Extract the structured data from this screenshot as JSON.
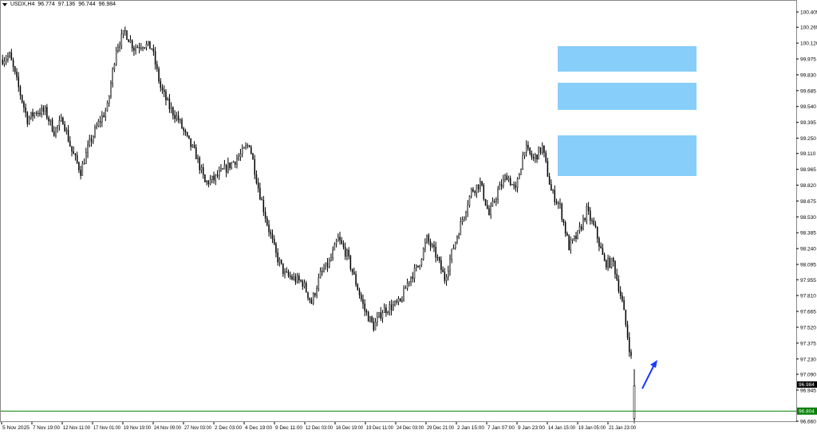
{
  "header": {
    "symbol": "USDX,H4",
    "open": "96.774",
    "high": "97.136",
    "low": "96.744",
    "close": "96.984"
  },
  "chart_data": {
    "type": "candlestick",
    "title": "USDX,H4",
    "ylim": [
      96.66,
      100.405
    ],
    "y_ticks": [
      "100.405",
      "100.265",
      "100.120",
      "99.975",
      "99.830",
      "99.685",
      "99.540",
      "99.395",
      "99.250",
      "99.110",
      "98.965",
      "98.820",
      "98.675",
      "98.530",
      "98.385",
      "98.240",
      "98.095",
      "97.955",
      "97.810",
      "97.665",
      "97.520",
      "97.375",
      "97.230",
      "97.090",
      "96.945",
      "96.660"
    ],
    "x_ticks": [
      "5 Nov 2025",
      "7 Nov 19:00",
      "12 Nov 11:00",
      "17 Nov 01:00",
      "19 Nov 19:00",
      "24 Nov 09:00",
      "27 Nov 03:00",
      "2 Dec 03:00",
      "4 Dec 19:00",
      "9 Dec 11:00",
      "12 Dec 03:00",
      "16 Dec 19:00",
      "19 Dec 11:00",
      "24 Dec 03:00",
      "29 Dec 21:00",
      "2 Jan 15:00",
      "7 Jan 07:00",
      "9 Jan 23:00",
      "14 Jan 15:00",
      "19 Jan 05:00",
      "21 Jan 23:00"
    ],
    "approx_close_path": [
      99.968,
      100.004,
      99.713,
      99.421,
      99.494,
      99.494,
      99.312,
      99.421,
      99.13,
      98.948,
      99.203,
      99.385,
      99.531,
      100.077,
      100.223,
      100.077,
      100.114,
      100.077,
      99.713,
      99.531,
      99.421,
      99.239,
      99.094,
      98.839,
      98.875,
      98.948,
      99.021,
      99.094,
      99.203,
      98.802,
      98.474,
      98.183,
      98.001,
      97.964,
      97.928,
      97.746,
      98.001,
      98.11,
      98.328,
      98.183,
      97.928,
      97.673,
      97.527,
      97.673,
      97.709,
      97.746,
      97.964,
      98.074,
      98.328,
      98.183,
      97.964,
      98.256,
      98.511,
      98.766,
      98.839,
      98.547,
      98.766,
      98.911,
      98.766,
      99.166,
      99.057,
      99.166,
      98.766,
      98.62,
      98.256,
      98.365,
      98.584,
      98.402,
      98.11,
      98.11,
      97.746,
      97.236
    ],
    "last_candle": {
      "open": 96.774,
      "high": 97.136,
      "low": 96.744,
      "close": 96.984
    },
    "current_price_label": "96.984",
    "horizontal_line": {
      "price": 96.804,
      "label": "96.804",
      "color": "#008000"
    },
    "zones": [
      {
        "top": 100.092,
        "bottom": 99.859,
        "color": "#87CEFA"
      },
      {
        "top": 99.757,
        "bottom": 99.509,
        "color": "#87CEFA"
      },
      {
        "top": 99.276,
        "bottom": 98.904,
        "color": "#87CEFA"
      }
    ],
    "arrow": {
      "color": "#1a3cff",
      "direction": "up"
    },
    "candle_color": "#000000",
    "grid": false
  }
}
